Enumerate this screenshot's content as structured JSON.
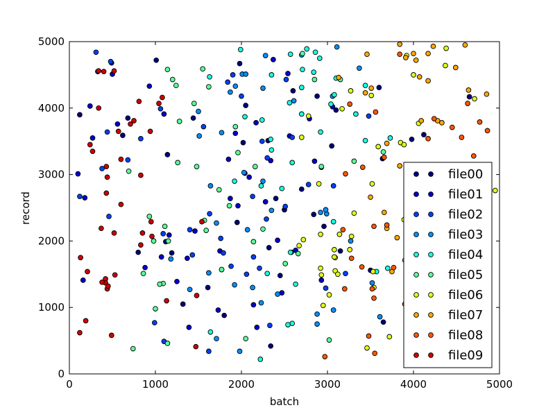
{
  "chart_data": {
    "type": "scatter",
    "title": "",
    "xlabel": "batch",
    "ylabel": "record",
    "xlim": [
      0,
      5000
    ],
    "ylim": [
      0,
      5000
    ],
    "xticks": [
      0,
      1000,
      2000,
      3000,
      4000,
      5000
    ],
    "yticks": [
      0,
      1000,
      2000,
      3000,
      4000,
      5000
    ],
    "grid": false,
    "legend_position": "right",
    "colors": [
      "#000080",
      "#0000d0",
      "#0040ff",
      "#0090ff",
      "#19ffe0",
      "#5cff9b",
      "#e0ff19",
      "#ffa800",
      "#ff5800",
      "#d00000"
    ],
    "series": [
      {
        "name": "file00",
        "x": [
          4300,
          2400,
          2050,
          3150,
          120,
          3500,
          1950,
          2880,
          2600,
          4650,
          4200,
          2500,
          3600,
          3050,
          1440,
          3640,
          3650,
          620,
          3980,
          1120,
          2840,
          800,
          2020,
          2320,
          1980,
          680,
          1800,
          3100,
          2960,
          1320,
          4120,
          1140,
          1010,
          2580,
          2700,
          2340,
          1190,
          2450,
          1610,
          2310
        ],
        "y": [
          2290,
          2640,
          4040,
          1850,
          3900,
          1560,
          2280,
          4180,
          4260,
          4170,
          1800,
          2470,
          4310,
          3430,
          3850,
          3240,
          780,
          3590,
          3530,
          1990,
          2400,
          1830,
          3480,
          1900,
          4670,
          3850,
          880,
          3970,
          2220,
          1050,
          3600,
          3300,
          4720,
          1830,
          2780,
          420,
          1820,
          1480,
          1300,
          3510
        ]
      },
      {
        "name": "file01",
        "x": [
          180,
          2280,
          1460,
          2420,
          1390,
          490,
          2540,
          270,
          1370,
          1070,
          2090,
          2630,
          1750,
          2850,
          1730,
          1960,
          240,
          1930,
          100,
          930,
          2140,
          160,
          560,
          1870,
          1100,
          1850,
          2180,
          2790,
          2170,
          3060,
          2470,
          2340,
          2560,
          1250,
          880,
          1160,
          500,
          2370,
          2040,
          2930
        ],
        "y": [
          2650,
          2590,
          2150,
          2010,
          700,
          4680,
          4520,
          3550,
          1740,
          1760,
          2960,
          1860,
          1850,
          3200,
          960,
          2530,
          4030,
          3620,
          3010,
          4330,
          1040,
          1410,
          3760,
          2640,
          3910,
          3230,
          700,
          3840,
          3780,
          4020,
          1220,
          3210,
          3580,
          1390,
          1600,
          2090,
          4510,
          4730,
          3020,
          1410
        ]
      },
      {
        "name": "file02",
        "x": [
          440,
          1430,
          2210,
          2240,
          480,
          3210,
          1620,
          1880,
          680,
          1630,
          2290,
          1100,
          330,
          2780,
          1090,
          2000,
          2140,
          310,
          1840,
          2980,
          380,
          120,
          3070,
          1400,
          2330,
          2520,
          1790,
          2060,
          2590,
          2130,
          1060,
          460,
          1760,
          830,
          2510,
          990,
          2300,
          3480,
          1560,
          1900
        ],
        "y": [
          3640,
          1790,
          1590,
          3500,
          4700,
          1510,
          340,
          1620,
          3220,
          2410,
          2330,
          490,
          4550,
          2850,
          2110,
          4180,
          1760,
          4840,
          4390,
          1290,
          3090,
          2670,
          2830,
          2170,
          730,
          4430,
          1820,
          1500,
          3560,
          2670,
          3990,
          2370,
          2040,
          3540,
          2520,
          770,
          3250,
          3880,
          3720,
          4500
        ]
      },
      {
        "name": "file03",
        "x": [
          2610,
          2420,
          2990,
          1710,
          1930,
          2280,
          2930,
          1620,
          1180,
          1870,
          1920,
          2880,
          3520,
          2130,
          3110,
          2030,
          2920,
          3070,
          3610,
          2250,
          1710,
          2350,
          1640,
          2230,
          3370,
          2070,
          1770,
          2010,
          1510,
          1400,
          3140,
          3060,
          1980,
          2250,
          2050,
          2880,
          2980,
          1500,
          2700,
          3270
        ],
        "y": [
          4110,
          1200,
          2410,
          530,
          4330,
          4790,
          3110,
          1520,
          1730,
          4240,
          1340,
          750,
          1370,
          1300,
          4920,
          3030,
          2430,
          960,
          860,
          4300,
          2270,
          2460,
          2830,
          1070,
          4600,
          2170,
          3630,
          4510,
          3580,
          1270,
          2100,
          4180,
          340,
          2900,
          4510,
          900,
          2470,
          3950,
          4800,
          2000
        ]
      },
      {
        "name": "file04",
        "x": [
          2470,
          2570,
          1640,
          1990,
          2700,
          3440,
          2040,
          3070,
          2590,
          2840,
          3570,
          4020,
          2230,
          2860,
          2540,
          1630,
          3080,
          2710,
          2350,
          2630,
          2220,
          3440,
          3700,
          2590,
          2340,
          2240,
          2760,
          2920,
          2700,
          1770,
          3330,
          3040,
          2570,
          1920,
          2560,
          2350,
          3100,
          3730,
          2300,
          2910
        ],
        "y": [
          2790,
          1830,
          630,
          4880,
          4310,
          3510,
          3870,
          2290,
          760,
          4540,
          1540,
          2160,
          2830,
          4840,
          740,
          4470,
          4200,
          4580,
          3370,
          1350,
          220,
          4340,
          1590,
          3180,
          3530,
          3820,
          4890,
          3640,
          3910,
          1570,
          3910,
          4060,
          4810,
          2900,
          4080,
          4500,
          4450,
          3550,
          1510,
          4750
        ]
      },
      {
        "name": "file05",
        "x": [
          1550,
          930,
          2140,
          1740,
          1860,
          1480,
          2050,
          3310,
          1450,
          690,
          1770,
          860,
          1000,
          1570,
          1110,
          1090,
          2160,
          2660,
          1960,
          740,
          1620,
          1260,
          1140,
          980,
          3020,
          1150,
          2510,
          2930,
          2850,
          1280,
          2710,
          1200,
          1050,
          1590,
          3150,
          1930,
          1140,
          1240,
          2250,
          3650
        ],
        "y": [
          4590,
          2370,
          1990,
          2770,
          2530,
          3120,
          530,
          3200,
          4070,
          3050,
          1570,
          1510,
          980,
          2310,
          2220,
          1360,
          3120,
          1810,
          3330,
          380,
          4320,
          3180,
          460,
          2000,
          510,
          2000,
          1660,
          3120,
          4430,
          3800,
          4820,
          4430,
          1350,
          2160,
          4430,
          3720,
          4580,
          4340,
          2180,
          3340
        ]
      },
      {
        "name": "file06",
        "x": [
          3270,
          2950,
          4380,
          3090,
          3540,
          4000,
          2930,
          2900,
          2780,
          2670,
          3460,
          2720,
          3090,
          3850,
          4710,
          3530,
          3890,
          3140,
          3120,
          3080,
          4950,
          4060,
          3310,
          2920,
          2920,
          3080,
          3720,
          3960,
          4370,
          3020,
          3260,
          3280,
          3590,
          3890,
          3920,
          4850,
          2700,
          3170,
          3510,
          3520
        ],
        "y": [
          4260,
          1030,
          4900,
          1550,
          1300,
          4500,
          1490,
          2860,
          3880,
          1930,
          390,
          2020,
          1750,
          3480,
          4140,
          1540,
          3450,
          2100,
          1500,
          1870,
          2760,
          3770,
          2420,
          2100,
          1590,
          1760,
          560,
          2450,
          4640,
          1190,
          1870,
          2070,
          3420,
          2320,
          4790,
          1330,
          3560,
          3990,
          4190,
          2860
        ]
      },
      {
        "name": "file07",
        "x": [
          4230,
          4160,
          4030,
          4030,
          4130,
          4280,
          4490,
          3840,
          4600,
          4390,
          3460,
          4330,
          4780,
          4850,
          4450,
          3440,
          4640,
          3690,
          3130,
          4170,
          4160,
          4230,
          4380,
          3510,
          4090,
          4120,
          3690,
          3900,
          4070,
          4060,
          3840,
          3660,
          3910,
          4170,
          4000,
          3500,
          4740,
          3810,
          4050,
          3750
        ],
        "y": [
          4930,
          1720,
          2690,
          4720,
          1720,
          3810,
          4610,
          4960,
          4950,
          1520,
          4810,
          3780,
          2560,
          4210,
          1120,
          4230,
          4270,
          3470,
          4460,
          4820,
          3060,
          2880,
          1290,
          4300,
          3810,
          2780,
          2190,
          1710,
          4470,
          1300,
          3130,
          2430,
          4760,
          4410,
          4820,
          2660,
          870,
          2050,
          1320,
          1540
        ]
      },
      {
        "name": "file08",
        "x": [
          3540,
          3280,
          3840,
          3200,
          2970,
          4560,
          4010,
          3210,
          3400,
          4860,
          4770,
          4700,
          4450,
          4170,
          4560,
          3540,
          4240,
          3690,
          3960,
          3550,
          4120,
          4420,
          3770,
          4600,
          4290,
          3520,
          4680,
          4080,
          4600,
          3560,
          3950,
          3480,
          3260,
          3410,
          3660,
          4140,
          4840,
          3180,
          3900,
          4630
        ],
        "y": [
          2220,
          1740,
          4810,
          1280,
          260,
          1930,
          2010,
          3010,
          1610,
          3660,
          3790,
          3280,
          3710,
          3540,
          3560,
          1140,
          3840,
          2240,
          580,
          310,
          800,
          760,
          1600,
          2970,
          2170,
          1280,
          3060,
          1730,
          2230,
          3940,
          2100,
          570,
          4060,
          3110,
          3260,
          1680,
          1360,
          2170,
          1050,
          4070
        ]
      },
      {
        "name": "file09",
        "x": [
          430,
          830,
          490,
          270,
          810,
          1080,
          1480,
          600,
          530,
          240,
          400,
          370,
          430,
          950,
          570,
          440,
          830,
          130,
          750,
          710,
          340,
          520,
          120,
          420,
          1540,
          940,
          420,
          440,
          1470,
          210,
          1040,
          850,
          450,
          600,
          340,
          960,
          1130,
          190,
          520,
          380
        ],
        "y": [
          2720,
          1940,
          580,
          3350,
          4100,
          4160,
          1180,
          3230,
          1490,
          3450,
          4550,
          2190,
          3120,
          2290,
          3650,
          1280,
          2990,
          1750,
          3810,
          3760,
          4000,
          2120,
          620,
          1430,
          2290,
          3650,
          1370,
          2960,
          410,
          1540,
          4070,
          2120,
          1320,
          2550,
          4560,
          2070,
          1100,
          800,
          4560,
          1380
        ]
      }
    ]
  }
}
